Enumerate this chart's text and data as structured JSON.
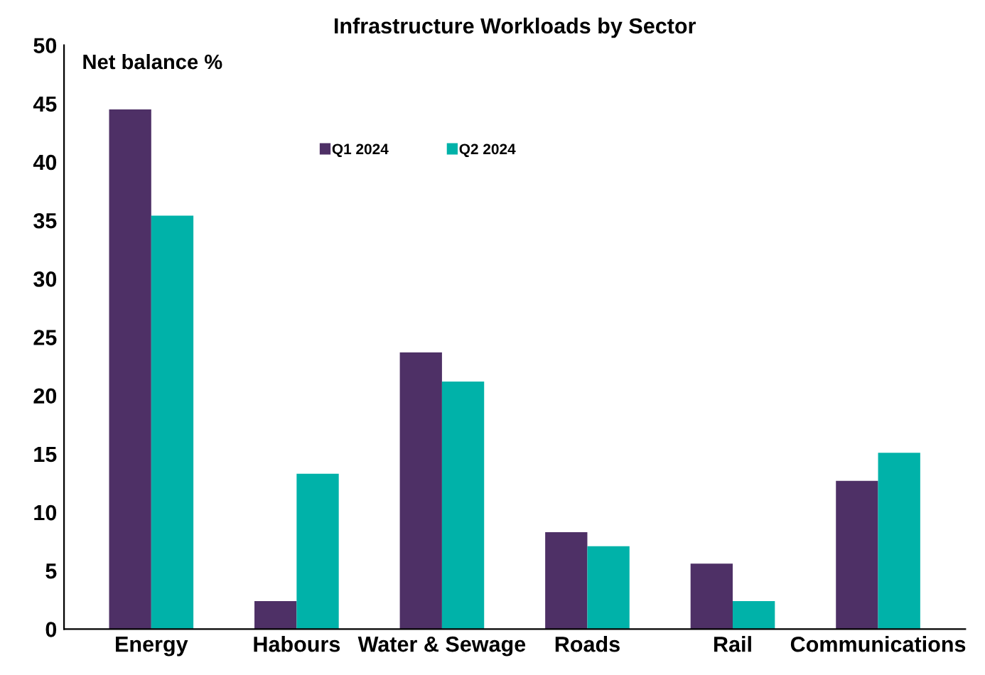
{
  "chart_data": {
    "type": "bar",
    "title": "Infrastructure Workloads by Sector",
    "ylabel": "Net balance %",
    "categories": [
      "Energy",
      "Habours",
      "Water & Sewage",
      "Roads",
      "Rail",
      "Communications"
    ],
    "series": [
      {
        "name": "Q1 2024",
        "color": "#4e3066",
        "values": [
          44.5,
          2.4,
          23.7,
          8.3,
          5.6,
          12.7
        ]
      },
      {
        "name": "Q2 2024",
        "color": "#00b2a9",
        "values": [
          35.4,
          13.3,
          21.2,
          7.1,
          2.4,
          15.1
        ]
      }
    ],
    "ylim": [
      0,
      50
    ],
    "yticks": [
      0,
      5,
      10,
      15,
      20,
      25,
      30,
      35,
      40,
      45,
      50
    ],
    "grid": false,
    "legend": "top"
  }
}
